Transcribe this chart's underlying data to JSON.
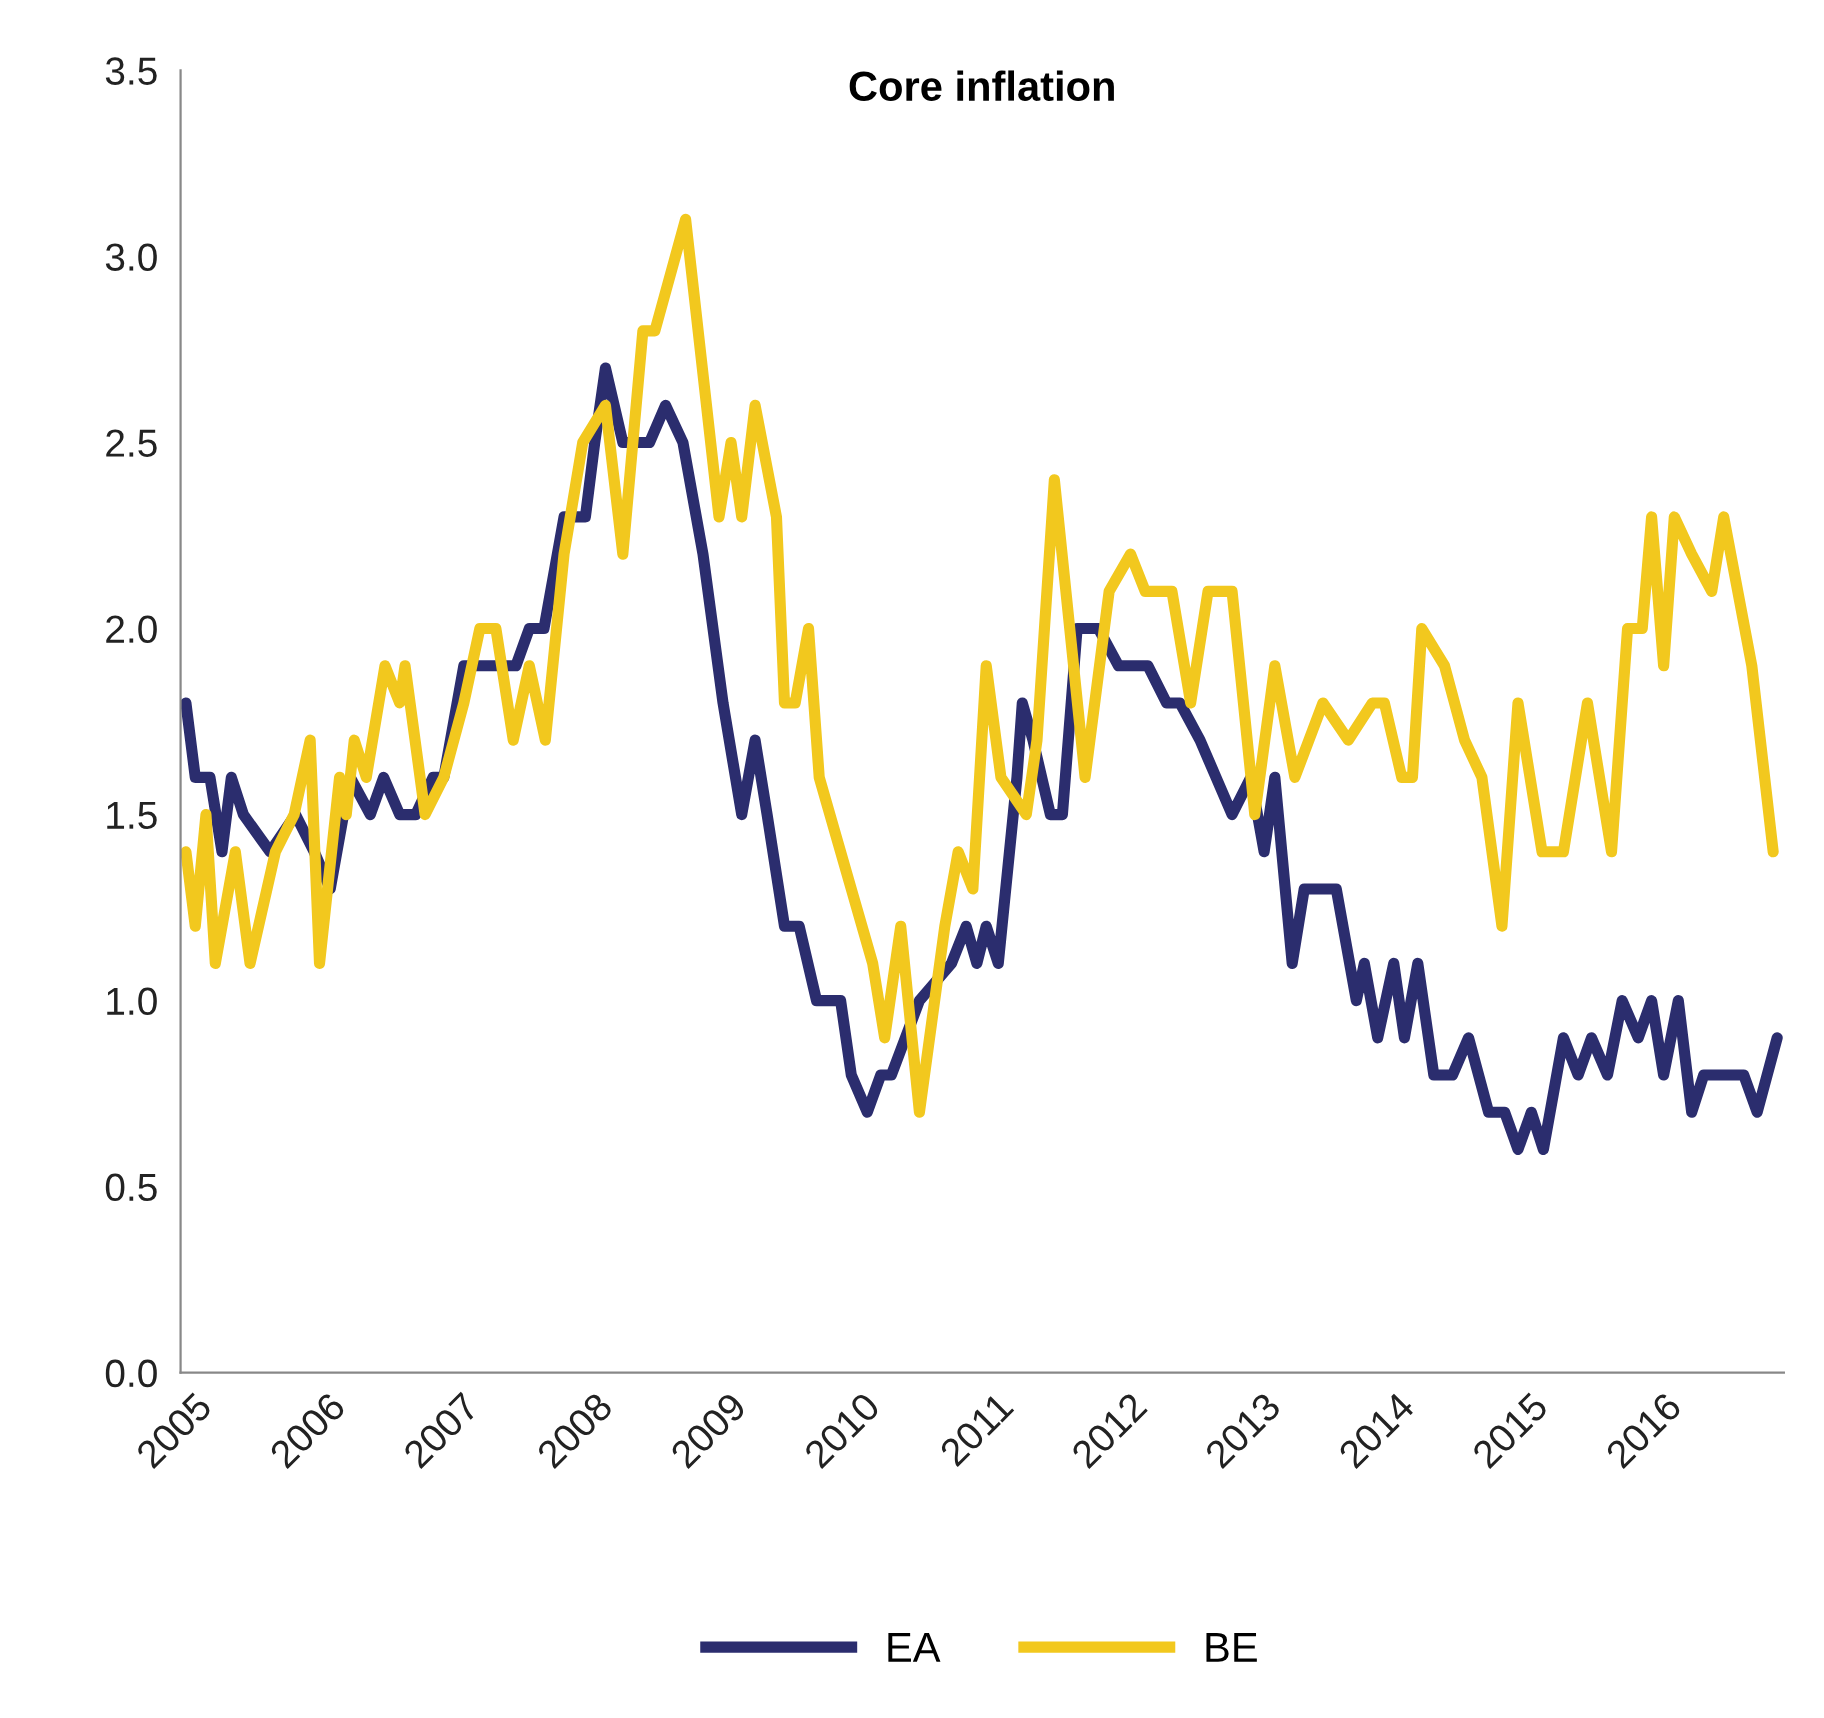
{
  "chart_data": {
    "type": "line",
    "title": "Core inflation",
    "xlim": [
      2004.9,
      2016.9
    ],
    "xticks": [
      2005,
      2006,
      2007,
      2008,
      2009,
      2010,
      2011,
      2012,
      2013,
      2014,
      2015,
      2016
    ],
    "ylim": [
      0,
      3.5
    ],
    "yticks": [
      {
        "value": 0,
        "label": "0.0"
      },
      {
        "value": 0.5,
        "label": "0.5"
      },
      {
        "value": 1,
        "label": "1.0"
      },
      {
        "value": 1.5,
        "label": "1.5"
      },
      {
        "value": 2,
        "label": "2.0"
      },
      {
        "value": 2.5,
        "label": "2.5"
      },
      {
        "value": 3,
        "label": "3.0"
      },
      {
        "value": 3.5,
        "label": "3.5"
      }
    ],
    "grid": false,
    "legend": "bottom",
    "marker": "none",
    "line_style": "solid",
    "series": [
      {
        "name": "EA",
        "color": "#2b2d6e",
        "x": [
          2004.94,
          2005.01,
          2005.12,
          2005.21,
          2005.28,
          2005.37,
          2005.57,
          2005.76,
          2005.9,
          2006.02,
          2006.17,
          2006.32,
          2006.42,
          2006.54,
          2006.66,
          2006.79,
          2006.87,
          2007.02,
          2007.17,
          2007.41,
          2007.51,
          2007.62,
          2007.77,
          2007.93,
          2008.0,
          2008.08,
          2008.21,
          2008.41,
          2008.53,
          2008.66,
          2008.81,
          2008.96,
          2009.1,
          2009.2,
          2009.29,
          2009.42,
          2009.53,
          2009.66,
          2009.84,
          2009.92,
          2010.04,
          2010.14,
          2010.22,
          2010.43,
          2010.67,
          2010.78,
          2010.86,
          2010.93,
          2011.02,
          2011.16,
          2011.2,
          2011.28,
          2011.41,
          2011.5,
          2011.61,
          2011.77,
          2011.92,
          2012.14,
          2012.28,
          2012.38,
          2012.53,
          2012.65,
          2012.77,
          2012.91,
          2013.01,
          2013.09,
          2013.22,
          2013.31,
          2013.55,
          2013.7,
          2013.76,
          2013.86,
          2013.98,
          2014.06,
          2014.16,
          2014.28,
          2014.42,
          2014.54,
          2014.69,
          2014.81,
          2014.91,
          2015.01,
          2015.1,
          2015.25,
          2015.36,
          2015.46,
          2015.58,
          2015.69,
          2015.81,
          2015.91,
          2016.0,
          2016.11,
          2016.21,
          2016.3,
          2016.6,
          2016.7,
          2016.85
        ],
        "values": [
          1.8,
          1.6,
          1.6,
          1.4,
          1.6,
          1.5,
          1.4,
          1.5,
          1.4,
          1.3,
          1.6,
          1.5,
          1.6,
          1.5,
          1.5,
          1.6,
          1.6,
          1.9,
          1.9,
          1.9,
          2.0,
          2.0,
          2.3,
          2.3,
          2.5,
          2.7,
          2.5,
          2.5,
          2.6,
          2.5,
          2.2,
          1.8,
          1.5,
          1.7,
          1.5,
          1.2,
          1.2,
          1.0,
          1.0,
          0.8,
          0.7,
          0.8,
          0.8,
          1.0,
          1.1,
          1.2,
          1.1,
          1.2,
          1.1,
          1.6,
          1.8,
          1.7,
          1.5,
          1.5,
          2.0,
          2.0,
          1.9,
          1.9,
          1.8,
          1.8,
          1.7,
          1.6,
          1.5,
          1.6,
          1.4,
          1.6,
          1.1,
          1.3,
          1.3,
          1.0,
          1.1,
          0.9,
          1.1,
          0.9,
          1.1,
          0.8,
          0.8,
          0.9,
          0.7,
          0.7,
          0.6,
          0.7,
          0.6,
          0.9,
          0.8,
          0.9,
          0.8,
          1.0,
          0.9,
          1.0,
          0.8,
          1.0,
          0.7,
          0.8,
          0.8,
          0.7,
          0.9
        ]
      },
      {
        "name": "BE",
        "color": "#f2c81e",
        "x": [
          2004.94,
          2005.01,
          2005.09,
          2005.16,
          2005.31,
          2005.42,
          2005.61,
          2005.75,
          2005.87,
          2005.94,
          2006.09,
          2006.14,
          2006.2,
          2006.29,
          2006.43,
          2006.54,
          2006.58,
          2006.73,
          2006.87,
          2007.02,
          2007.14,
          2007.26,
          2007.39,
          2007.51,
          2007.63,
          2007.77,
          2007.91,
          2008.08,
          2008.21,
          2008.36,
          2008.45,
          2008.68,
          2008.93,
          2009.02,
          2009.1,
          2009.2,
          2009.36,
          2009.42,
          2009.5,
          2009.6,
          2009.68,
          2009.92,
          2010.08,
          2010.17,
          2010.29,
          2010.43,
          2010.62,
          2010.72,
          2010.83,
          2010.93,
          2011.04,
          2011.23,
          2011.31,
          2011.44,
          2011.67,
          2011.85,
          2012.01,
          2012.12,
          2012.32,
          2012.46,
          2012.59,
          2012.77,
          2012.94,
          2013.09,
          2013.24,
          2013.45,
          2013.64,
          2013.82,
          2013.91,
          2014.04,
          2014.12,
          2014.19,
          2014.36,
          2014.51,
          2014.64,
          2014.79,
          2014.91,
          2015.09,
          2015.25,
          2015.43,
          2015.61,
          2015.73,
          2015.84,
          2015.91,
          2016.0,
          2016.08,
          2016.21,
          2016.36,
          2016.45,
          2016.66,
          2016.82
        ],
        "values": [
          1.4,
          1.2,
          1.5,
          1.1,
          1.4,
          1.1,
          1.4,
          1.5,
          1.7,
          1.1,
          1.6,
          1.5,
          1.7,
          1.6,
          1.9,
          1.8,
          1.9,
          1.5,
          1.6,
          1.8,
          2.0,
          2.0,
          1.7,
          1.9,
          1.7,
          2.2,
          2.5,
          2.6,
          2.2,
          2.8,
          2.8,
          3.1,
          2.3,
          2.5,
          2.3,
          2.6,
          2.3,
          1.8,
          1.8,
          2.0,
          1.6,
          1.3,
          1.1,
          0.9,
          1.2,
          0.7,
          1.2,
          1.4,
          1.3,
          1.9,
          1.6,
          1.5,
          1.7,
          2.4,
          1.6,
          2.1,
          2.2,
          2.1,
          2.1,
          1.8,
          2.1,
          2.1,
          1.5,
          1.9,
          1.6,
          1.8,
          1.7,
          1.8,
          1.8,
          1.6,
          1.6,
          2.0,
          1.9,
          1.7,
          1.6,
          1.2,
          1.8,
          1.4,
          1.4,
          1.8,
          1.4,
          2.0,
          2.0,
          2.3,
          1.9,
          2.3,
          2.2,
          2.1,
          2.3,
          1.9,
          1.4
        ]
      }
    ]
  }
}
